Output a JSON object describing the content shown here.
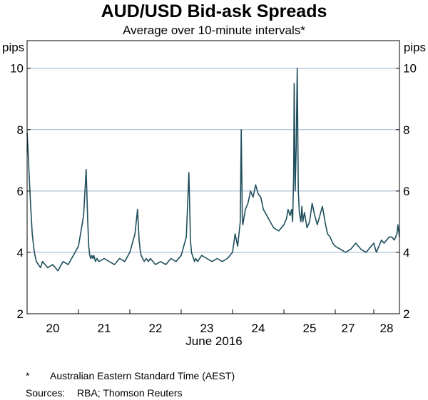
{
  "chart_data": {
    "type": "line",
    "title": "AUD/USD Bid-ask Spreads",
    "subtitle": "Average over 10-minute intervals*",
    "y_unit_left": "pips",
    "y_unit_right": "pips",
    "xlabel": "June 2016",
    "ylim": [
      2,
      10.9
    ],
    "yticks": [
      2,
      4,
      6,
      8,
      10
    ],
    "grid": true,
    "x_ticks": [
      "20",
      "21",
      "22",
      "23",
      "24",
      "25",
      "27",
      "28"
    ],
    "x_tick_positions": [
      0.5,
      1.5,
      2.5,
      3.5,
      4.5,
      5.5,
      6.25,
      7.0
    ],
    "x_day_boundaries": [
      1,
      2,
      3,
      4,
      5,
      6,
      6.75
    ],
    "xlim": [
      0,
      7.25
    ],
    "series": [
      {
        "color": "#1f4e5c",
        "x": [
          0,
          0.02,
          0.04,
          0.07,
          0.1,
          0.14,
          0.18,
          0.22,
          0.26,
          0.3,
          0.4,
          0.5,
          0.6,
          0.7,
          0.8,
          0.9,
          1.0,
          1.05,
          1.1,
          1.15,
          1.18,
          1.2,
          1.22,
          1.24,
          1.26,
          1.28,
          1.3,
          1.33,
          1.36,
          1.4,
          1.5,
          1.6,
          1.7,
          1.8,
          1.9,
          2.0,
          2.05,
          2.1,
          2.15,
          2.18,
          2.2,
          2.22,
          2.25,
          2.28,
          2.32,
          2.36,
          2.4,
          2.5,
          2.6,
          2.7,
          2.8,
          2.9,
          3.0,
          3.05,
          3.1,
          3.15,
          3.18,
          3.2,
          3.22,
          3.24,
          3.26,
          3.28,
          3.32,
          3.36,
          3.4,
          3.5,
          3.6,
          3.7,
          3.8,
          3.9,
          4.0,
          4.05,
          4.1,
          4.15,
          4.17,
          4.19,
          4.2,
          4.22,
          4.25,
          4.3,
          4.35,
          4.4,
          4.45,
          4.5,
          4.55,
          4.6,
          4.7,
          4.8,
          4.9,
          5.0,
          5.05,
          5.08,
          5.12,
          5.15,
          5.17,
          5.19,
          5.2,
          5.22,
          5.24,
          5.26,
          5.28,
          5.3,
          5.33,
          5.35,
          5.37,
          5.4,
          5.45,
          5.5,
          5.55,
          5.6,
          5.65,
          5.7,
          5.75,
          5.8,
          5.85,
          5.9,
          5.95,
          6.0,
          6.1,
          6.2,
          6.3,
          6.4,
          6.5,
          6.6,
          6.7,
          6.75,
          6.8,
          6.85,
          6.9,
          6.95,
          7.0,
          7.05,
          7.1,
          7.15,
          7.2,
          7.22,
          7.25
        ],
        "values": [
          7.9,
          7.3,
          6.5,
          5.5,
          4.6,
          4.0,
          3.7,
          3.6,
          3.5,
          3.7,
          3.5,
          3.6,
          3.4,
          3.7,
          3.6,
          3.9,
          4.2,
          4.7,
          5.2,
          6.7,
          5.0,
          4.2,
          3.9,
          3.8,
          3.9,
          3.8,
          3.9,
          3.7,
          3.8,
          3.7,
          3.8,
          3.7,
          3.6,
          3.8,
          3.7,
          4.0,
          4.3,
          4.6,
          5.4,
          4.4,
          4.1,
          3.9,
          3.8,
          3.7,
          3.8,
          3.7,
          3.8,
          3.6,
          3.7,
          3.6,
          3.8,
          3.7,
          3.9,
          4.2,
          4.5,
          6.6,
          4.4,
          4.0,
          3.9,
          3.8,
          3.7,
          3.8,
          3.7,
          3.8,
          3.9,
          3.8,
          3.7,
          3.8,
          3.7,
          3.8,
          4.0,
          4.6,
          4.2,
          5.0,
          8.0,
          5.1,
          4.9,
          5.1,
          5.4,
          5.6,
          6.0,
          5.8,
          6.2,
          5.9,
          5.8,
          5.4,
          5.1,
          4.8,
          4.7,
          4.9,
          5.1,
          5.4,
          5.2,
          5.4,
          5.0,
          6.5,
          9.5,
          6.0,
          7.5,
          10.0,
          6.0,
          5.3,
          5.0,
          5.5,
          5.0,
          5.3,
          4.8,
          5.0,
          5.6,
          5.2,
          4.9,
          5.2,
          5.5,
          5.0,
          4.6,
          4.5,
          4.3,
          4.2,
          4.1,
          4.0,
          4.1,
          4.3,
          4.1,
          4.0,
          4.2,
          4.3,
          4.0,
          4.2,
          4.4,
          4.3,
          4.4,
          4.5,
          4.5,
          4.4,
          4.6,
          4.9,
          4.5
        ]
      }
    ],
    "footnote_marker": "*",
    "footnote_text": "Australian Eastern Standard Time (AEST)",
    "sources_label": "Sources:",
    "sources_text": "RBA; Thomson Reuters",
    "colors": {
      "line": "#1f4e5c",
      "grid": "#9bb3c9",
      "frame": "#000000"
    }
  }
}
